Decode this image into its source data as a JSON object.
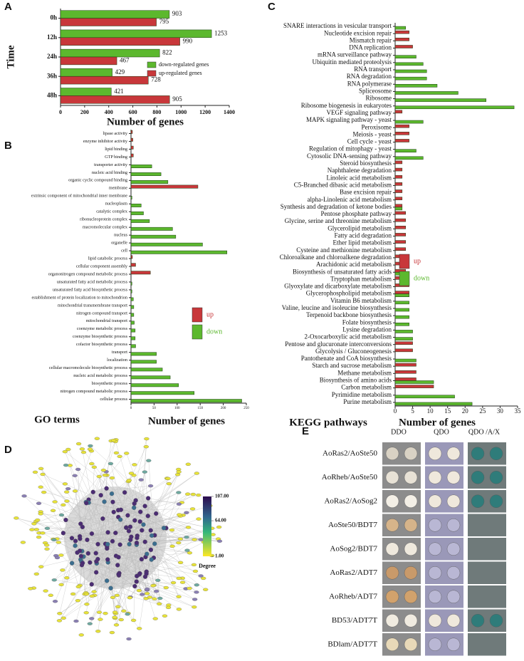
{
  "panel_labels": [
    "A",
    "B",
    "C",
    "D",
    "E"
  ],
  "chart_data": [
    {
      "type": "hbar",
      "y_label": "Time",
      "x_label": "Number of genes",
      "categories": [
        "0h",
        "12h",
        "24h",
        "36h",
        "48h"
      ],
      "series": [
        {
          "name": "down-regulated genes",
          "color": "#5cb82e",
          "values": [
            903,
            1253,
            822,
            429,
            421
          ]
        },
        {
          "name": "up-regulated genes",
          "color": "#c8373a",
          "values": [
            795,
            990,
            467,
            728,
            905
          ]
        }
      ],
      "xlim": [
        0,
        1400
      ],
      "xticks": [
        0,
        200,
        400,
        600,
        800,
        1000,
        1200,
        1400
      ],
      "value_labels_shown": true,
      "legend": "right"
    },
    {
      "type": "hbar",
      "y_label": "GO terms",
      "x_label": "Number of genes",
      "categories": [
        "lipase activity",
        "enzyme inhibitor activity",
        "lipid binding",
        "GTP binding",
        "transporter activity",
        "nucleic acid binding",
        "organic cyclic compound binding",
        "membrane",
        "extrinsic component of mitochondrial inner membrane",
        "nucleoplasm",
        "catalytic complex",
        "ribonucleoprotein complex",
        "macromolecular complex",
        "nucleus",
        "organelle",
        "cell",
        "lipid catabolic process",
        "cellular component assembly",
        "organonitrogen compound metabolic process",
        "unsaturated fatty acid metabolic process",
        "unsaturated fatty acid biosynthetic process",
        "establishment of protein localization to mitochondrion",
        "mitochondrial transmembrane transport",
        "nitrogen compound transport",
        "mitochondrial transport",
        "coenzyme metabolic process",
        "coenzyme biosynthetic process",
        "cofactor biosynthetic process",
        "transport",
        "localization",
        "cellular macromolecule biosynthetic process",
        "nucleic acid metabolic process",
        "biosynthetic process",
        "nitrogen compound metabolic process",
        "cellular process"
      ],
      "series": [
        {
          "name": "up",
          "color": "#c8373a",
          "values": [
            3,
            4,
            5,
            5,
            null,
            null,
            null,
            145,
            null,
            null,
            null,
            null,
            null,
            null,
            null,
            null,
            3,
            10,
            42,
            null,
            null,
            null,
            null,
            null,
            null,
            null,
            null,
            null,
            null,
            null,
            null,
            null,
            null,
            null,
            null
          ]
        },
        {
          "name": "down",
          "color": "#5cb82e",
          "values": [
            null,
            null,
            null,
            null,
            45,
            65,
            80,
            null,
            2,
            22,
            27,
            40,
            90,
            97,
            155,
            208,
            null,
            null,
            null,
            2,
            2,
            5,
            6,
            6,
            7,
            9,
            9,
            10,
            55,
            55,
            68,
            85,
            103,
            137,
            240
          ]
        }
      ],
      "xlim": [
        0,
        250
      ],
      "xticks": [
        0,
        50,
        100,
        150,
        200,
        250
      ],
      "legend": "right"
    },
    {
      "type": "hbar",
      "y_label": "KEGG pathways",
      "x_label": "Number of genes",
      "categories": [
        "SNARE interactions in vesicular transport",
        "Nucleotide excision repair",
        "Mismatch repair",
        "DNA replication",
        "mRNA surveillance pathway",
        "Ubiquitin mediated proteolysis",
        "RNA transport",
        "RNA degradation",
        "RNA polymerase",
        "Spliceosome",
        "Ribosome",
        "Ribosome biogenesis in eukaryotes",
        "VEGF signaling pathway",
        "MAPK signaling pathway - yeast",
        "Peroxisome",
        "Meiosis - yeast",
        "Cell cycle - yeast",
        "Regulation of mitophagy - yeast",
        "Cytosolic DNA-sensing pathway",
        "Steroid biosynthesis",
        "Naphthalene degradation",
        "Linoleic acid metabolism",
        "C5-Branched dibasic acid metabolism",
        "Base excision repair",
        "alpha-Linolenic acid metabolism",
        "Synthesis and degradation of ketone bodies",
        "Pentose phosphate pathway",
        "Glycine, serine and threonine metabolism",
        "Glycerolipid metabolism",
        "Fatty acid degradation",
        "Ether lipid metabolism",
        "Cysteine and methionine metabolism",
        "Chloroalkane and chloroalkene degradation",
        "Arachidonic acid metabolism",
        "Biosynthesis of unsaturated fatty acids",
        "Tryptophan metabolism",
        "Glyoxylate and dicarboxylate metabolism",
        "Glycerophospholipid metabolism",
        "Vitamin B6 metabolism",
        "Valine, leucine and isoleucine biosynthesis",
        "Terpenoid backbone biosynthesis",
        "Folate biosynthesis",
        "Lysine degradation",
        "2-Oxocarboxylic acid metabolism",
        "Pentose and glucuronate interconversions",
        "Glycolysis / Gluconeogenesis",
        "Pantothenate and CoA biosynthesis",
        "Starch and sucrose metabolism",
        "Methane metabolism",
        "Biosynthesis of amino acids",
        "Carbon metabolism",
        "Pyrimidine metabolism",
        "Purine metabolism"
      ],
      "series": [
        {
          "name": "up",
          "color": "#c8373a",
          "values": [
            null,
            4,
            4,
            5,
            null,
            null,
            null,
            null,
            null,
            null,
            null,
            null,
            2,
            null,
            4,
            4,
            4,
            null,
            null,
            2,
            2,
            2,
            2,
            2,
            2,
            2,
            3,
            3,
            3,
            3,
            3,
            3,
            3,
            3,
            3,
            4,
            4,
            4,
            null,
            null,
            null,
            null,
            null,
            null,
            5,
            5,
            null,
            6,
            6,
            6,
            11,
            null,
            null
          ]
        },
        {
          "name": "down",
          "color": "#5cb82e",
          "values": [
            3,
            null,
            null,
            null,
            6,
            8,
            9,
            9,
            12,
            18,
            26,
            34,
            null,
            8,
            null,
            null,
            null,
            6,
            8,
            null,
            null,
            null,
            null,
            null,
            null,
            2,
            null,
            null,
            null,
            null,
            null,
            null,
            null,
            null,
            3,
            null,
            null,
            4,
            4,
            4,
            4,
            4,
            5,
            5,
            null,
            null,
            6,
            null,
            null,
            11,
            null,
            17,
            22
          ]
        }
      ],
      "xlim": [
        0,
        35
      ],
      "xticks": [
        0,
        5,
        10,
        15,
        20,
        25,
        30,
        35
      ],
      "legend": "right"
    },
    {
      "type": "network",
      "colorbar_label": "Degree",
      "colorbar_ticks": [
        {
          "value": 107,
          "label": "107.00"
        },
        {
          "value": 64,
          "label": "64.00"
        },
        {
          "value": 1,
          "label": "1.00"
        }
      ],
      "colorbar_lim": [
        1,
        107
      ]
    }
  ],
  "table": {
    "columns": [
      "DDO",
      "QDO",
      "QDO /A/X"
    ],
    "rows": [
      "AoRas2/AoSte50",
      "AoRheb/AoSte50",
      "AoRas2/AoSog2",
      "AoSte50/BDT7",
      "AoSog2/BDT7",
      "AoRas2/ADT7",
      "AoRheb/ADT7",
      "BD53/ADT7T",
      "BDlam/ADT7T"
    ]
  }
}
